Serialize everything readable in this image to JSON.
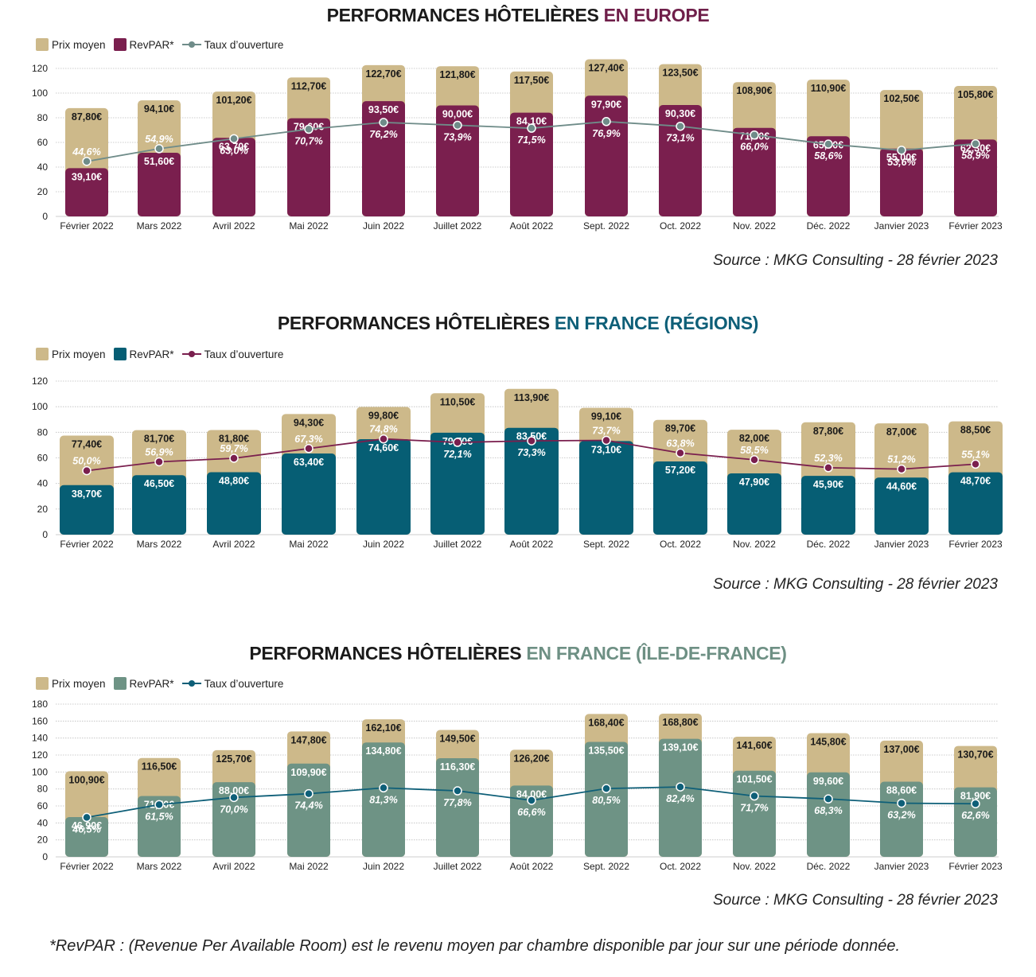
{
  "months": [
    "Février 2022",
    "Mars 2022",
    "Avril 2022",
    "Mai 2022",
    "Juin 2022",
    "Juillet 2022",
    "Août 2022",
    "Sept. 2022",
    "Oct. 2022",
    "Nov. 2022",
    "Déc. 2022",
    "Janvier 2023",
    "Février 2023"
  ],
  "legend": {
    "prix": "Prix moyen",
    "revpar": "RevPAR*",
    "taux": "Taux d’ouverture"
  },
  "footnote": "*RevPAR : (Revenue Per Available Room) est le revenu moyen par chambre disponible par jour sur une période donnée.",
  "colors": {
    "prix": "#cdb98a",
    "grid": "#bdbdbd"
  },
  "chart_data": [
    {
      "type": "bar",
      "title_main": "PERFORMANCES HÔTELIÈRES ",
      "title_accent": "EN EUROPE",
      "accent_color": "#6f1f4a",
      "revpar_color": "#7a1f4e",
      "line_color": "#6f8c89",
      "ylim": [
        0,
        120
      ],
      "yticks": [
        0,
        20,
        40,
        60,
        80,
        100,
        120
      ],
      "source": "Source : MKG Consulting - 28 février 2023",
      "series": [
        {
          "name": "Prix moyen",
          "values": [
            87.8,
            94.1,
            101.2,
            112.7,
            122.7,
            121.8,
            117.5,
            127.4,
            123.5,
            108.9,
            110.9,
            102.5,
            105.8
          ],
          "labels": [
            "87,80€",
            "94,10€",
            "101,20€",
            "112,70€",
            "122,70€",
            "121,80€",
            "117,50€",
            "127,40€",
            "123,50€",
            "108,90€",
            "110,90€",
            "102,50€",
            "105,80€"
          ]
        },
        {
          "name": "RevPAR*",
          "values": [
            39.1,
            51.6,
            63.7,
            79.6,
            93.5,
            90.0,
            84.1,
            97.9,
            90.3,
            71.8,
            65.0,
            55.0,
            62.3
          ],
          "labels": [
            "39,10€",
            "51,60€",
            "63,70€",
            "79,60€",
            "93,50€",
            "90,00€",
            "84,10€",
            "97,90€",
            "90,30€",
            "71,80€",
            "65,00€",
            "55,00€",
            "62,30€"
          ]
        },
        {
          "name": "Taux d’ouverture",
          "values": [
            44.6,
            54.9,
            63.0,
            70.7,
            76.2,
            73.9,
            71.5,
            76.9,
            73.1,
            66.0,
            58.6,
            53.6,
            58.9
          ],
          "labels": [
            "44,6%",
            "54,9%",
            "63,0%",
            "70,7%",
            "76,2%",
            "73,9%",
            "71,5%",
            "76,9%",
            "73,1%",
            "66,0%",
            "58,6%",
            "53,6%",
            "58,9%"
          ]
        }
      ]
    },
    {
      "type": "bar",
      "title_main": "PERFORMANCES HÔTELIÈRES ",
      "title_accent": "EN FRANCE (RÉGIONS)",
      "accent_color": "#0e5f78",
      "revpar_color": "#065e74",
      "line_color": "#7a1f4e",
      "ylim": [
        0,
        120
      ],
      "yticks": [
        0,
        20,
        40,
        60,
        80,
        100,
        120
      ],
      "source": "Source : MKG Consulting - 28 février 2023",
      "series": [
        {
          "name": "Prix moyen",
          "values": [
            77.4,
            81.7,
            81.8,
            94.3,
            99.8,
            110.5,
            113.9,
            99.1,
            89.7,
            82.0,
            87.8,
            87.0,
            88.5
          ],
          "labels": [
            "77,40€",
            "81,70€",
            "81,80€",
            "94,30€",
            "99,80€",
            "110,50€",
            "113,90€",
            "99,10€",
            "89,70€",
            "82,00€",
            "87,80€",
            "87,00€",
            "88,50€"
          ]
        },
        {
          "name": "RevPAR*",
          "values": [
            38.7,
            46.5,
            48.8,
            63.4,
            74.6,
            79.7,
            83.5,
            73.1,
            57.2,
            47.9,
            45.9,
            44.6,
            48.7
          ],
          "labels": [
            "38,70€",
            "46,50€",
            "48,80€",
            "63,40€",
            "74,60€",
            "79,70€",
            "83,50€",
            "73,10€",
            "57,20€",
            "47,90€",
            "45,90€",
            "44,60€",
            "48,70€"
          ]
        },
        {
          "name": "Taux d’ouverture",
          "values": [
            50.0,
            56.9,
            59.7,
            67.3,
            74.8,
            72.1,
            73.3,
            73.7,
            63.8,
            58.5,
            52.3,
            51.2,
            55.1
          ],
          "labels": [
            "50,0%",
            "56,9%",
            "59,7%",
            "67,3%",
            "74,8%",
            "72,1%",
            "73,3%",
            "73,7%",
            "63,8%",
            "58,5%",
            "52,3%",
            "51,2%",
            "55,1%"
          ]
        }
      ]
    },
    {
      "type": "bar",
      "title_main": "PERFORMANCES HÔTELIÈRES ",
      "title_accent": "EN FRANCE (ÎLE-DE-FRANCE)",
      "accent_color": "#6e9084",
      "revpar_color": "#6e9385",
      "line_color": "#0e5f78",
      "ylim": [
        0,
        180
      ],
      "yticks": [
        0,
        20,
        40,
        60,
        80,
        100,
        120,
        140,
        160,
        180
      ],
      "source": "Source : MKG Consulting - 28 février 2023",
      "series": [
        {
          "name": "Prix moyen",
          "values": [
            100.9,
            116.5,
            125.7,
            147.8,
            162.1,
            149.5,
            126.2,
            168.4,
            168.8,
            141.6,
            145.8,
            137.0,
            130.7
          ],
          "labels": [
            "100,90€",
            "116,50€",
            "125,70€",
            "147,80€",
            "162,10€",
            "149,50€",
            "126,20€",
            "168,40€",
            "168,80€",
            "141,60€",
            "145,80€",
            "137,00€",
            "130,70€"
          ]
        },
        {
          "name": "RevPAR*",
          "values": [
            46.9,
            71.7,
            88.0,
            109.9,
            134.8,
            116.3,
            84.0,
            135.5,
            139.1,
            101.5,
            99.6,
            88.6,
            81.9
          ],
          "labels": [
            "46,90€",
            "71,70€",
            "88,00€",
            "109,90€",
            "134,80€",
            "116,30€",
            "84,00€",
            "135,50€",
            "139,10€",
            "101,50€",
            "99,60€",
            "88,60€",
            "81,90€"
          ]
        },
        {
          "name": "Taux d’ouverture",
          "values": [
            46.5,
            61.5,
            70.0,
            74.4,
            81.3,
            77.8,
            66.6,
            80.5,
            82.4,
            71.7,
            68.3,
            63.2,
            62.6
          ],
          "labels": [
            "46,5%",
            "61,5%",
            "70,0%",
            "74,4%",
            "81,3%",
            "77,8%",
            "66,6%",
            "80,5%",
            "82,4%",
            "71,7%",
            "68,3%",
            "63,2%",
            "62,6%"
          ]
        }
      ]
    }
  ]
}
